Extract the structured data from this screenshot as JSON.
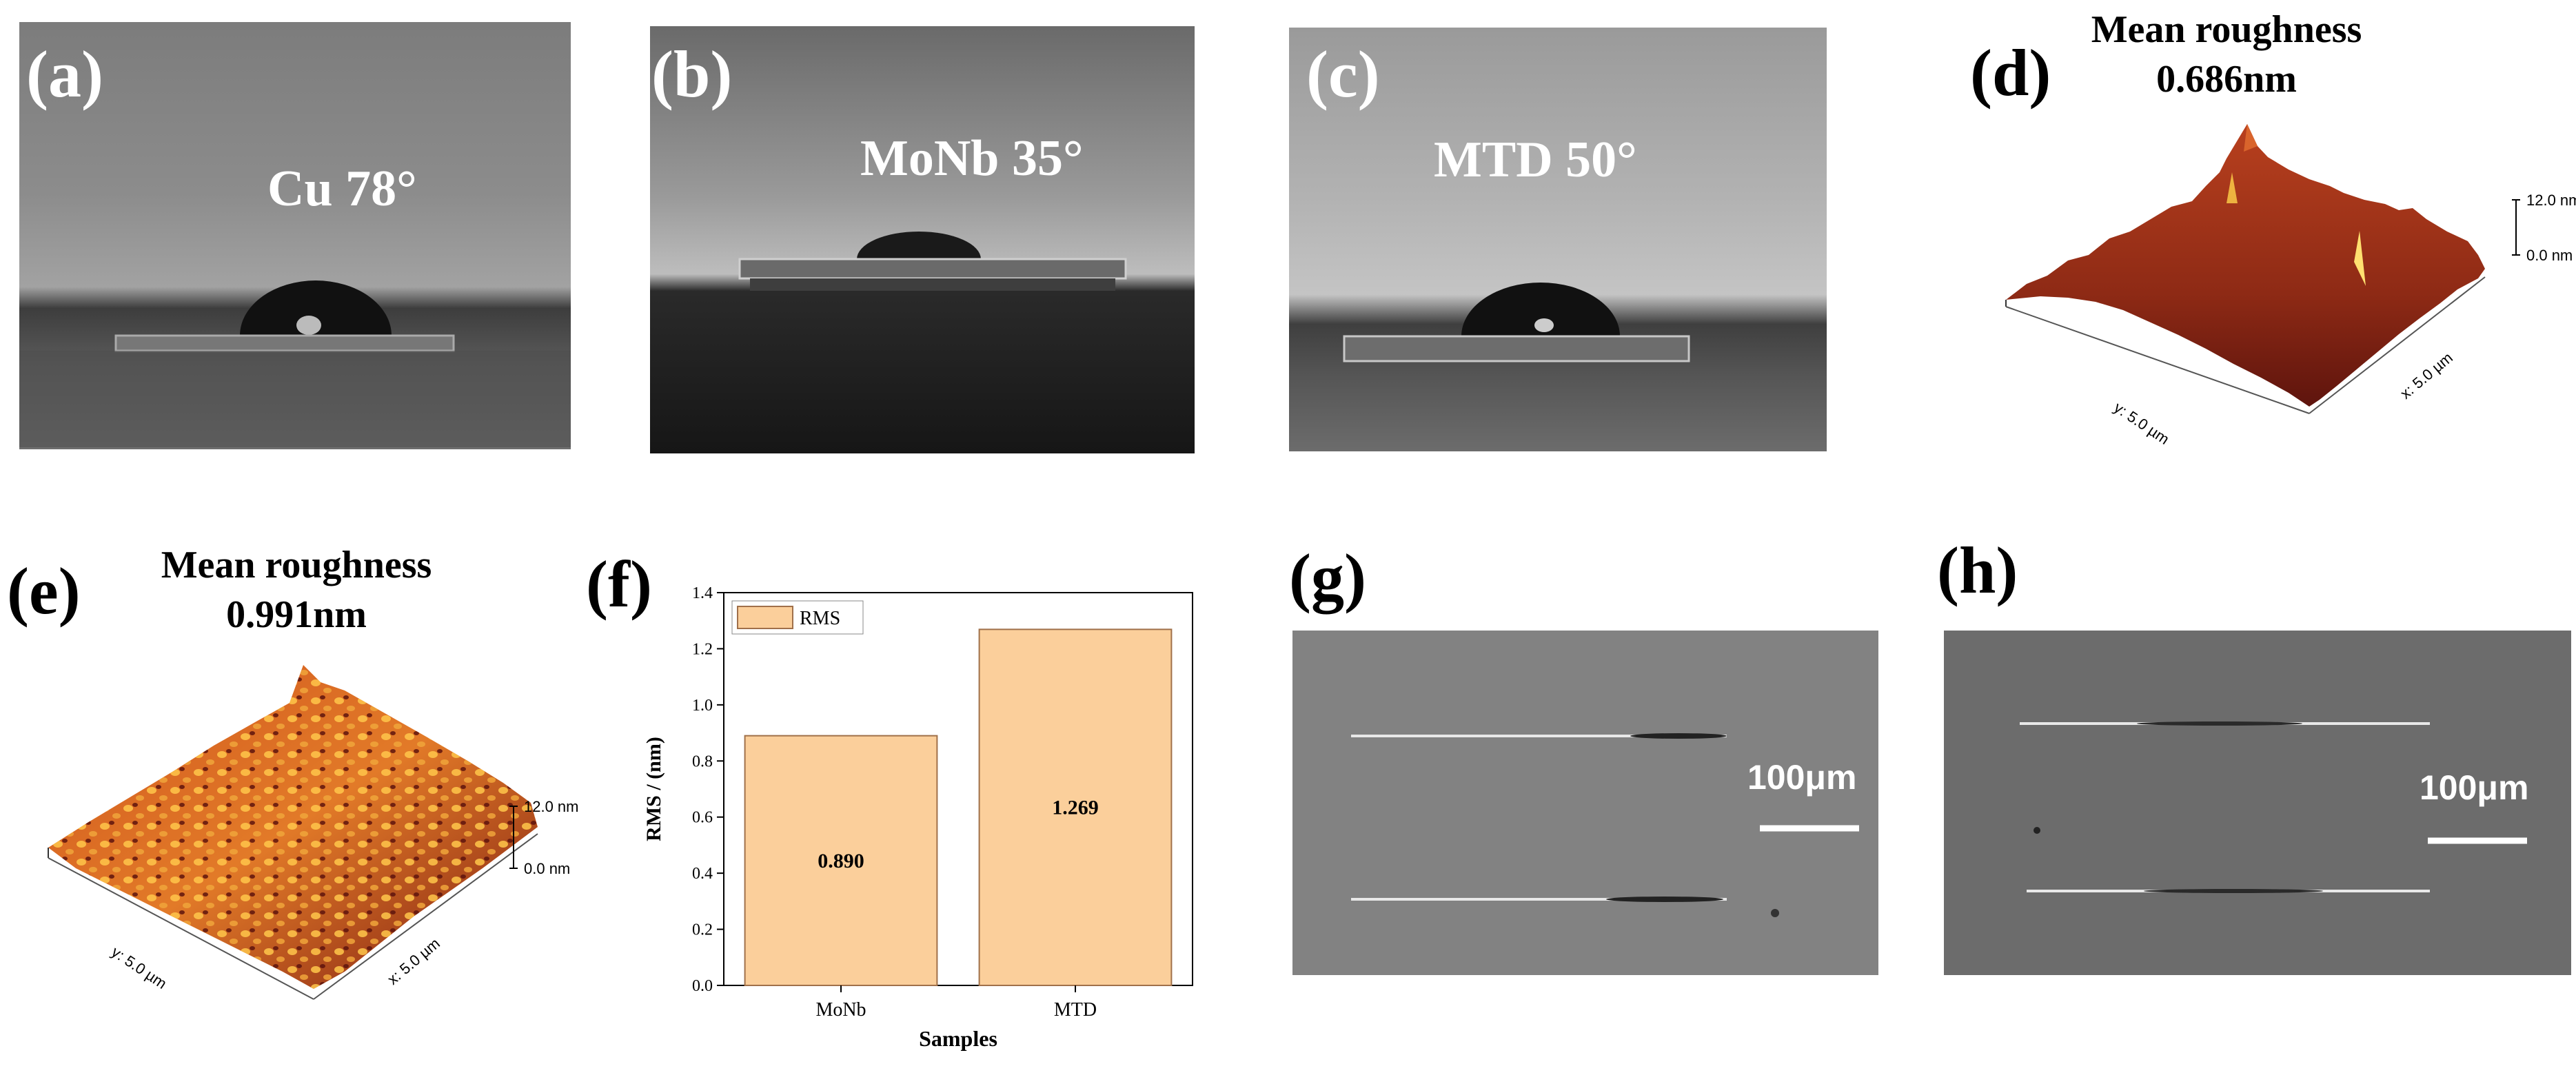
{
  "figure": {
    "panels": {
      "a": {
        "letter": "(a)",
        "caption": "Cu 78°"
      },
      "b": {
        "letter": "(b)",
        "caption": "MoNb 35°"
      },
      "c": {
        "letter": "(c)",
        "caption": "MTD 50°"
      },
      "d": {
        "letter": "(d)",
        "title_line1": "Mean roughness",
        "title_line2": "0.686nm",
        "z_top": "12.0 nm",
        "z_bottom": "0.0 nm",
        "y_axis": "y: 5.0 µm",
        "x_axis": "x: 5.0 µm"
      },
      "e": {
        "letter": "(e)",
        "title_line1": "Mean roughness",
        "title_line2": "0.991nm",
        "z_top": "12.0 nm",
        "z_bottom": "0.0 nm",
        "y_axis": "y: 5.0 µm",
        "x_axis": "x: 5.0 µm"
      },
      "f": {
        "letter": "(f)"
      },
      "g": {
        "letter": "(g)",
        "scale_label": "100μm"
      },
      "h": {
        "letter": "(h)",
        "scale_label": "100μm"
      }
    },
    "colors": {
      "bar_fill": "#fbcf9b",
      "bar_stroke": "#a0704a",
      "afm_dark": "#6b1510",
      "afm_light": "#ffd24a"
    }
  },
  "chart_data": {
    "type": "bar",
    "categories": [
      "MoNb",
      "MTD"
    ],
    "series": [
      {
        "name": "RMS",
        "values": [
          0.89,
          1.269
        ]
      }
    ],
    "data_labels": [
      "0.890",
      "1.269"
    ],
    "xlabel": "Samples",
    "ylabel": "RMS / (nm)",
    "ylim": [
      0,
      1.4
    ],
    "yticks": [
      "0.0",
      "0.2",
      "0.4",
      "0.6",
      "0.8",
      "1.0",
      "1.2",
      "1.4"
    ],
    "legend": "top-left",
    "grid": false
  }
}
